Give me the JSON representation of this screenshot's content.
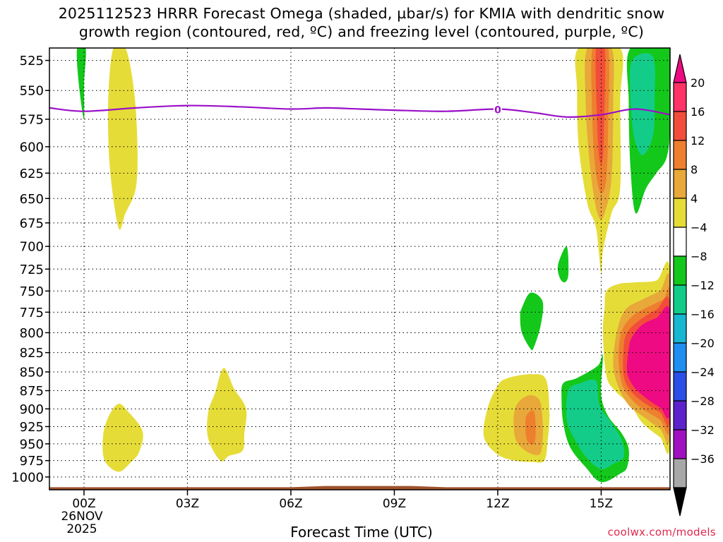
{
  "chart_data": {
    "type": "heatmap",
    "title_line1": "2025112523 HRRR Forecast Omega (shaded, µbar/s) for KMIA with dendritic snow",
    "title_line2": "growth region (contoured, red, ºC) and freezing level (contoured, purple, ºC)",
    "xlabel": "Forecast Time (UTC)",
    "x_ticks": [
      {
        "hour": 0,
        "label": "00Z"
      },
      {
        "hour": 3,
        "label": "03Z"
      },
      {
        "hour": 6,
        "label": "06Z"
      },
      {
        "hour": 9,
        "label": "09Z"
      },
      {
        "hour": 12,
        "label": "12Z"
      },
      {
        "hour": 15,
        "label": "15Z"
      }
    ],
    "x_date_line1": "26NOV",
    "x_date_line2": "2025",
    "xlim": [
      -1.0,
      17.0
    ],
    "ylim_hpa": [
      515,
      1020
    ],
    "y_ticks": [
      525,
      550,
      575,
      600,
      625,
      650,
      675,
      700,
      725,
      750,
      775,
      800,
      825,
      850,
      875,
      900,
      925,
      950,
      975,
      1000
    ],
    "colorbar_levels": [
      20,
      16,
      12,
      8,
      4,
      -4,
      -8,
      -12,
      -16,
      -20,
      -24,
      -28,
      -32,
      -36
    ],
    "colorbar_colors": [
      "#ff3366",
      "#f24d3a",
      "#ee7f2e",
      "#e8a83a",
      "#e6dc38",
      "#ffffff",
      "#13c81a",
      "#14cc8a",
      "#17b7d2",
      "#1e8ef0",
      "#2a4fe8",
      "#5c22cc",
      "#a010c0",
      "#a8a8a8"
    ],
    "colorbar_top_color": "#ee0a82",
    "colorbar_bottom_color": "#000000",
    "freezing_level_label": "0",
    "freezing_level": [
      {
        "hour": -1.0,
        "hpa": 565
      },
      {
        "hour": 0.0,
        "hpa": 568
      },
      {
        "hour": 1.5,
        "hpa": 565
      },
      {
        "hour": 3.0,
        "hpa": 563
      },
      {
        "hour": 4.5,
        "hpa": 564
      },
      {
        "hour": 6.0,
        "hpa": 566
      },
      {
        "hour": 7.0,
        "hpa": 565
      },
      {
        "hour": 8.0,
        "hpa": 566
      },
      {
        "hour": 9.0,
        "hpa": 567
      },
      {
        "hour": 10.5,
        "hpa": 568
      },
      {
        "hour": 12.0,
        "hpa": 566
      },
      {
        "hour": 13.0,
        "hpa": 569
      },
      {
        "hour": 14.0,
        "hpa": 573
      },
      {
        "hour": 15.0,
        "hpa": 571
      },
      {
        "hour": 16.0,
        "hpa": 566
      },
      {
        "hour": 17.0,
        "hpa": 571
      }
    ],
    "regions": [
      {
        "name": "green-00z-upper",
        "color": "#13c81a",
        "points": [
          [
            -0.2,
            515
          ],
          [
            0.05,
            515
          ],
          [
            0.0,
            545
          ],
          [
            0.0,
            575
          ],
          [
            -0.15,
            545
          ]
        ]
      },
      {
        "name": "yellow-01z-upper",
        "color": "#e6dc38",
        "points": [
          [
            0.85,
            515
          ],
          [
            1.2,
            515
          ],
          [
            1.45,
            550
          ],
          [
            1.55,
            600
          ],
          [
            1.5,
            640
          ],
          [
            1.2,
            665
          ],
          [
            1.0,
            680
          ],
          [
            0.75,
            620
          ],
          [
            0.7,
            560
          ]
        ]
      },
      {
        "name": "yellow-01z-lower",
        "color": "#e6dc38",
        "points": [
          [
            1.0,
            893
          ],
          [
            1.3,
            905
          ],
          [
            1.7,
            932
          ],
          [
            1.6,
            962
          ],
          [
            1.35,
            978
          ],
          [
            1.0,
            992
          ],
          [
            0.6,
            975
          ],
          [
            0.55,
            940
          ],
          [
            0.7,
            912
          ]
        ]
      },
      {
        "name": "yellow-04z-lower",
        "color": "#e6dc38",
        "points": [
          [
            4.05,
            845
          ],
          [
            4.35,
            872
          ],
          [
            4.7,
            900
          ],
          [
            4.65,
            935
          ],
          [
            4.6,
            960
          ],
          [
            4.2,
            968
          ],
          [
            3.95,
            975
          ],
          [
            3.6,
            942
          ],
          [
            3.6,
            905
          ],
          [
            3.8,
            878
          ]
        ]
      },
      {
        "name": "yellow-12z-lower",
        "color": "#e6dc38",
        "points": [
          [
            12.0,
            868
          ],
          [
            12.3,
            858
          ],
          [
            13.0,
            853
          ],
          [
            13.4,
            860
          ],
          [
            13.5,
            905
          ],
          [
            13.45,
            945
          ],
          [
            13.35,
            975
          ],
          [
            13.0,
            977
          ],
          [
            12.5,
            975
          ],
          [
            12.0,
            966
          ],
          [
            11.6,
            940
          ],
          [
            11.7,
            900
          ]
        ]
      },
      {
        "name": "orange-13z-lower",
        "color": "#e8a83a",
        "points": [
          [
            12.5,
            900
          ],
          [
            12.85,
            882
          ],
          [
            13.2,
            887
          ],
          [
            13.3,
            915
          ],
          [
            13.3,
            945
          ],
          [
            13.2,
            966
          ],
          [
            12.8,
            960
          ],
          [
            12.5,
            940
          ]
        ]
      },
      {
        "name": "orange2-13z-lower",
        "color": "#ee7f2e",
        "points": [
          [
            12.85,
            908
          ],
          [
            13.05,
            903
          ],
          [
            13.1,
            930
          ],
          [
            13.05,
            950
          ],
          [
            12.85,
            945
          ],
          [
            12.8,
            920
          ]
        ]
      },
      {
        "name": "green-13z-mid",
        "color": "#13c81a",
        "points": [
          [
            12.7,
            770
          ],
          [
            12.95,
            752
          ],
          [
            13.3,
            762
          ],
          [
            13.25,
            790
          ],
          [
            13.05,
            818
          ],
          [
            12.95,
            820
          ],
          [
            12.7,
            800
          ],
          [
            12.65,
            780
          ]
        ]
      },
      {
        "name": "green-14z-mid",
        "color": "#13c81a",
        "points": [
          [
            13.75,
            720
          ],
          [
            14.0,
            700
          ],
          [
            14.05,
            730
          ],
          [
            13.95,
            740
          ],
          [
            13.8,
            735
          ]
        ]
      },
      {
        "name": "yellow-15z-upper",
        "color": "#e6dc38",
        "points": [
          [
            14.35,
            515
          ],
          [
            15.55,
            515
          ],
          [
            15.55,
            560
          ],
          [
            15.55,
            640
          ],
          [
            15.3,
            665
          ],
          [
            15.05,
            705
          ],
          [
            15.0,
            730
          ],
          [
            14.85,
            680
          ],
          [
            14.6,
            655
          ],
          [
            14.35,
            600
          ],
          [
            14.3,
            550
          ]
        ]
      },
      {
        "name": "orange-15z-upper",
        "color": "#e8a83a",
        "points": [
          [
            14.6,
            515
          ],
          [
            15.3,
            515
          ],
          [
            15.35,
            560
          ],
          [
            15.3,
            630
          ],
          [
            15.1,
            665
          ],
          [
            14.95,
            670
          ],
          [
            14.8,
            650
          ],
          [
            14.65,
            610
          ],
          [
            14.55,
            560
          ]
        ]
      },
      {
        "name": "orange2-15z-upper",
        "color": "#ee7f2e",
        "points": [
          [
            14.75,
            515
          ],
          [
            15.2,
            515
          ],
          [
            15.2,
            580
          ],
          [
            15.15,
            630
          ],
          [
            15.0,
            645
          ],
          [
            14.85,
            625
          ],
          [
            14.75,
            580
          ]
        ]
      },
      {
        "name": "red-15z-upper",
        "color": "#f24d3a",
        "points": [
          [
            14.85,
            515
          ],
          [
            15.1,
            515
          ],
          [
            15.1,
            560
          ],
          [
            15.05,
            610
          ],
          [
            14.95,
            612
          ],
          [
            14.88,
            575
          ]
        ]
      },
      {
        "name": "green-16z-upper",
        "color": "#13c81a",
        "points": [
          [
            15.85,
            515
          ],
          [
            17.0,
            515
          ],
          [
            17.0,
            580
          ],
          [
            16.9,
            610
          ],
          [
            16.6,
            625
          ],
          [
            16.3,
            640
          ],
          [
            16.0,
            665
          ],
          [
            15.85,
            620
          ],
          [
            15.8,
            560
          ]
        ]
      },
      {
        "name": "teal-16z-upper",
        "color": "#14cc8a",
        "points": [
          [
            15.9,
            525
          ],
          [
            16.5,
            522
          ],
          [
            16.55,
            560
          ],
          [
            16.5,
            590
          ],
          [
            16.2,
            608
          ],
          [
            15.95,
            590
          ],
          [
            15.85,
            555
          ]
        ]
      },
      {
        "name": "green-14z-lower",
        "color": "#13c81a",
        "points": [
          [
            13.9,
            865
          ],
          [
            14.3,
            858
          ],
          [
            14.9,
            842
          ],
          [
            15.05,
            828
          ],
          [
            15.0,
            880
          ],
          [
            15.2,
            910
          ],
          [
            15.6,
            935
          ],
          [
            15.8,
            958
          ],
          [
            15.75,
            985
          ],
          [
            15.55,
            995
          ],
          [
            15.0,
            1008
          ],
          [
            14.55,
            985
          ],
          [
            14.1,
            955
          ],
          [
            13.9,
            920
          ],
          [
            13.85,
            885
          ]
        ]
      },
      {
        "name": "teal-14z-lower",
        "color": "#14cc8a",
        "points": [
          [
            14.05,
            875
          ],
          [
            14.4,
            865
          ],
          [
            14.85,
            862
          ],
          [
            14.95,
            895
          ],
          [
            15.3,
            920
          ],
          [
            15.6,
            945
          ],
          [
            15.65,
            970
          ],
          [
            15.35,
            980
          ],
          [
            15.0,
            988
          ],
          [
            14.6,
            972
          ],
          [
            14.25,
            945
          ],
          [
            14.0,
            915
          ]
        ]
      },
      {
        "name": "yellow-16z-lower",
        "color": "#e6dc38",
        "points": [
          [
            15.15,
            750
          ],
          [
            15.5,
            742
          ],
          [
            16.0,
            740
          ],
          [
            16.6,
            738
          ],
          [
            17.0,
            728
          ],
          [
            17.0,
            948
          ],
          [
            16.7,
            940
          ],
          [
            16.2,
            920
          ],
          [
            15.85,
            895
          ],
          [
            15.4,
            875
          ],
          [
            15.15,
            855
          ],
          [
            15.05,
            800
          ],
          [
            15.1,
            770
          ]
        ]
      },
      {
        "name": "orange-16z-lower",
        "color": "#e8a83a",
        "points": [
          [
            15.45,
            800
          ],
          [
            15.7,
            772
          ],
          [
            16.2,
            760
          ],
          [
            16.7,
            750
          ],
          [
            17.0,
            740
          ],
          [
            17.0,
            935
          ],
          [
            16.7,
            928
          ],
          [
            16.2,
            910
          ],
          [
            15.8,
            895
          ],
          [
            15.5,
            870
          ],
          [
            15.35,
            840
          ]
        ]
      },
      {
        "name": "orange2-16z-lower",
        "color": "#ee7f2e",
        "points": [
          [
            15.6,
            798
          ],
          [
            15.9,
            780
          ],
          [
            16.3,
            770
          ],
          [
            16.8,
            760
          ],
          [
            17.0,
            755
          ],
          [
            17.0,
            925
          ],
          [
            16.7,
            915
          ],
          [
            16.2,
            900
          ],
          [
            15.85,
            885
          ],
          [
            15.6,
            865
          ],
          [
            15.5,
            830
          ]
        ]
      },
      {
        "name": "red-16z-lower",
        "color": "#f24d3a",
        "points": [
          [
            15.75,
            800
          ],
          [
            16.1,
            785
          ],
          [
            16.6,
            772
          ],
          [
            17.0,
            765
          ],
          [
            17.0,
            915
          ],
          [
            16.7,
            905
          ],
          [
            16.2,
            890
          ],
          [
            15.85,
            875
          ],
          [
            15.65,
            855
          ],
          [
            15.65,
            820
          ]
        ]
      },
      {
        "name": "magenta-16z-lower",
        "color": "#ee0a82",
        "points": [
          [
            15.9,
            805
          ],
          [
            16.2,
            790
          ],
          [
            16.6,
            782
          ],
          [
            17.0,
            775
          ],
          [
            17.0,
            905
          ],
          [
            16.7,
            898
          ],
          [
            16.3,
            885
          ],
          [
            15.95,
            870
          ],
          [
            15.75,
            850
          ],
          [
            15.8,
            820
          ]
        ]
      }
    ],
    "surface_ground": [
      {
        "hour": -1.0,
        "hpa": 1016
      },
      {
        "hour": 6.0,
        "hpa": 1016
      },
      {
        "hour": 7.0,
        "hpa": 1014
      },
      {
        "hour": 9.5,
        "hpa": 1014
      },
      {
        "hour": 10.5,
        "hpa": 1016
      },
      {
        "hour": 17.0,
        "hpa": 1016
      }
    ]
  },
  "credit": "coolwx.com/models"
}
